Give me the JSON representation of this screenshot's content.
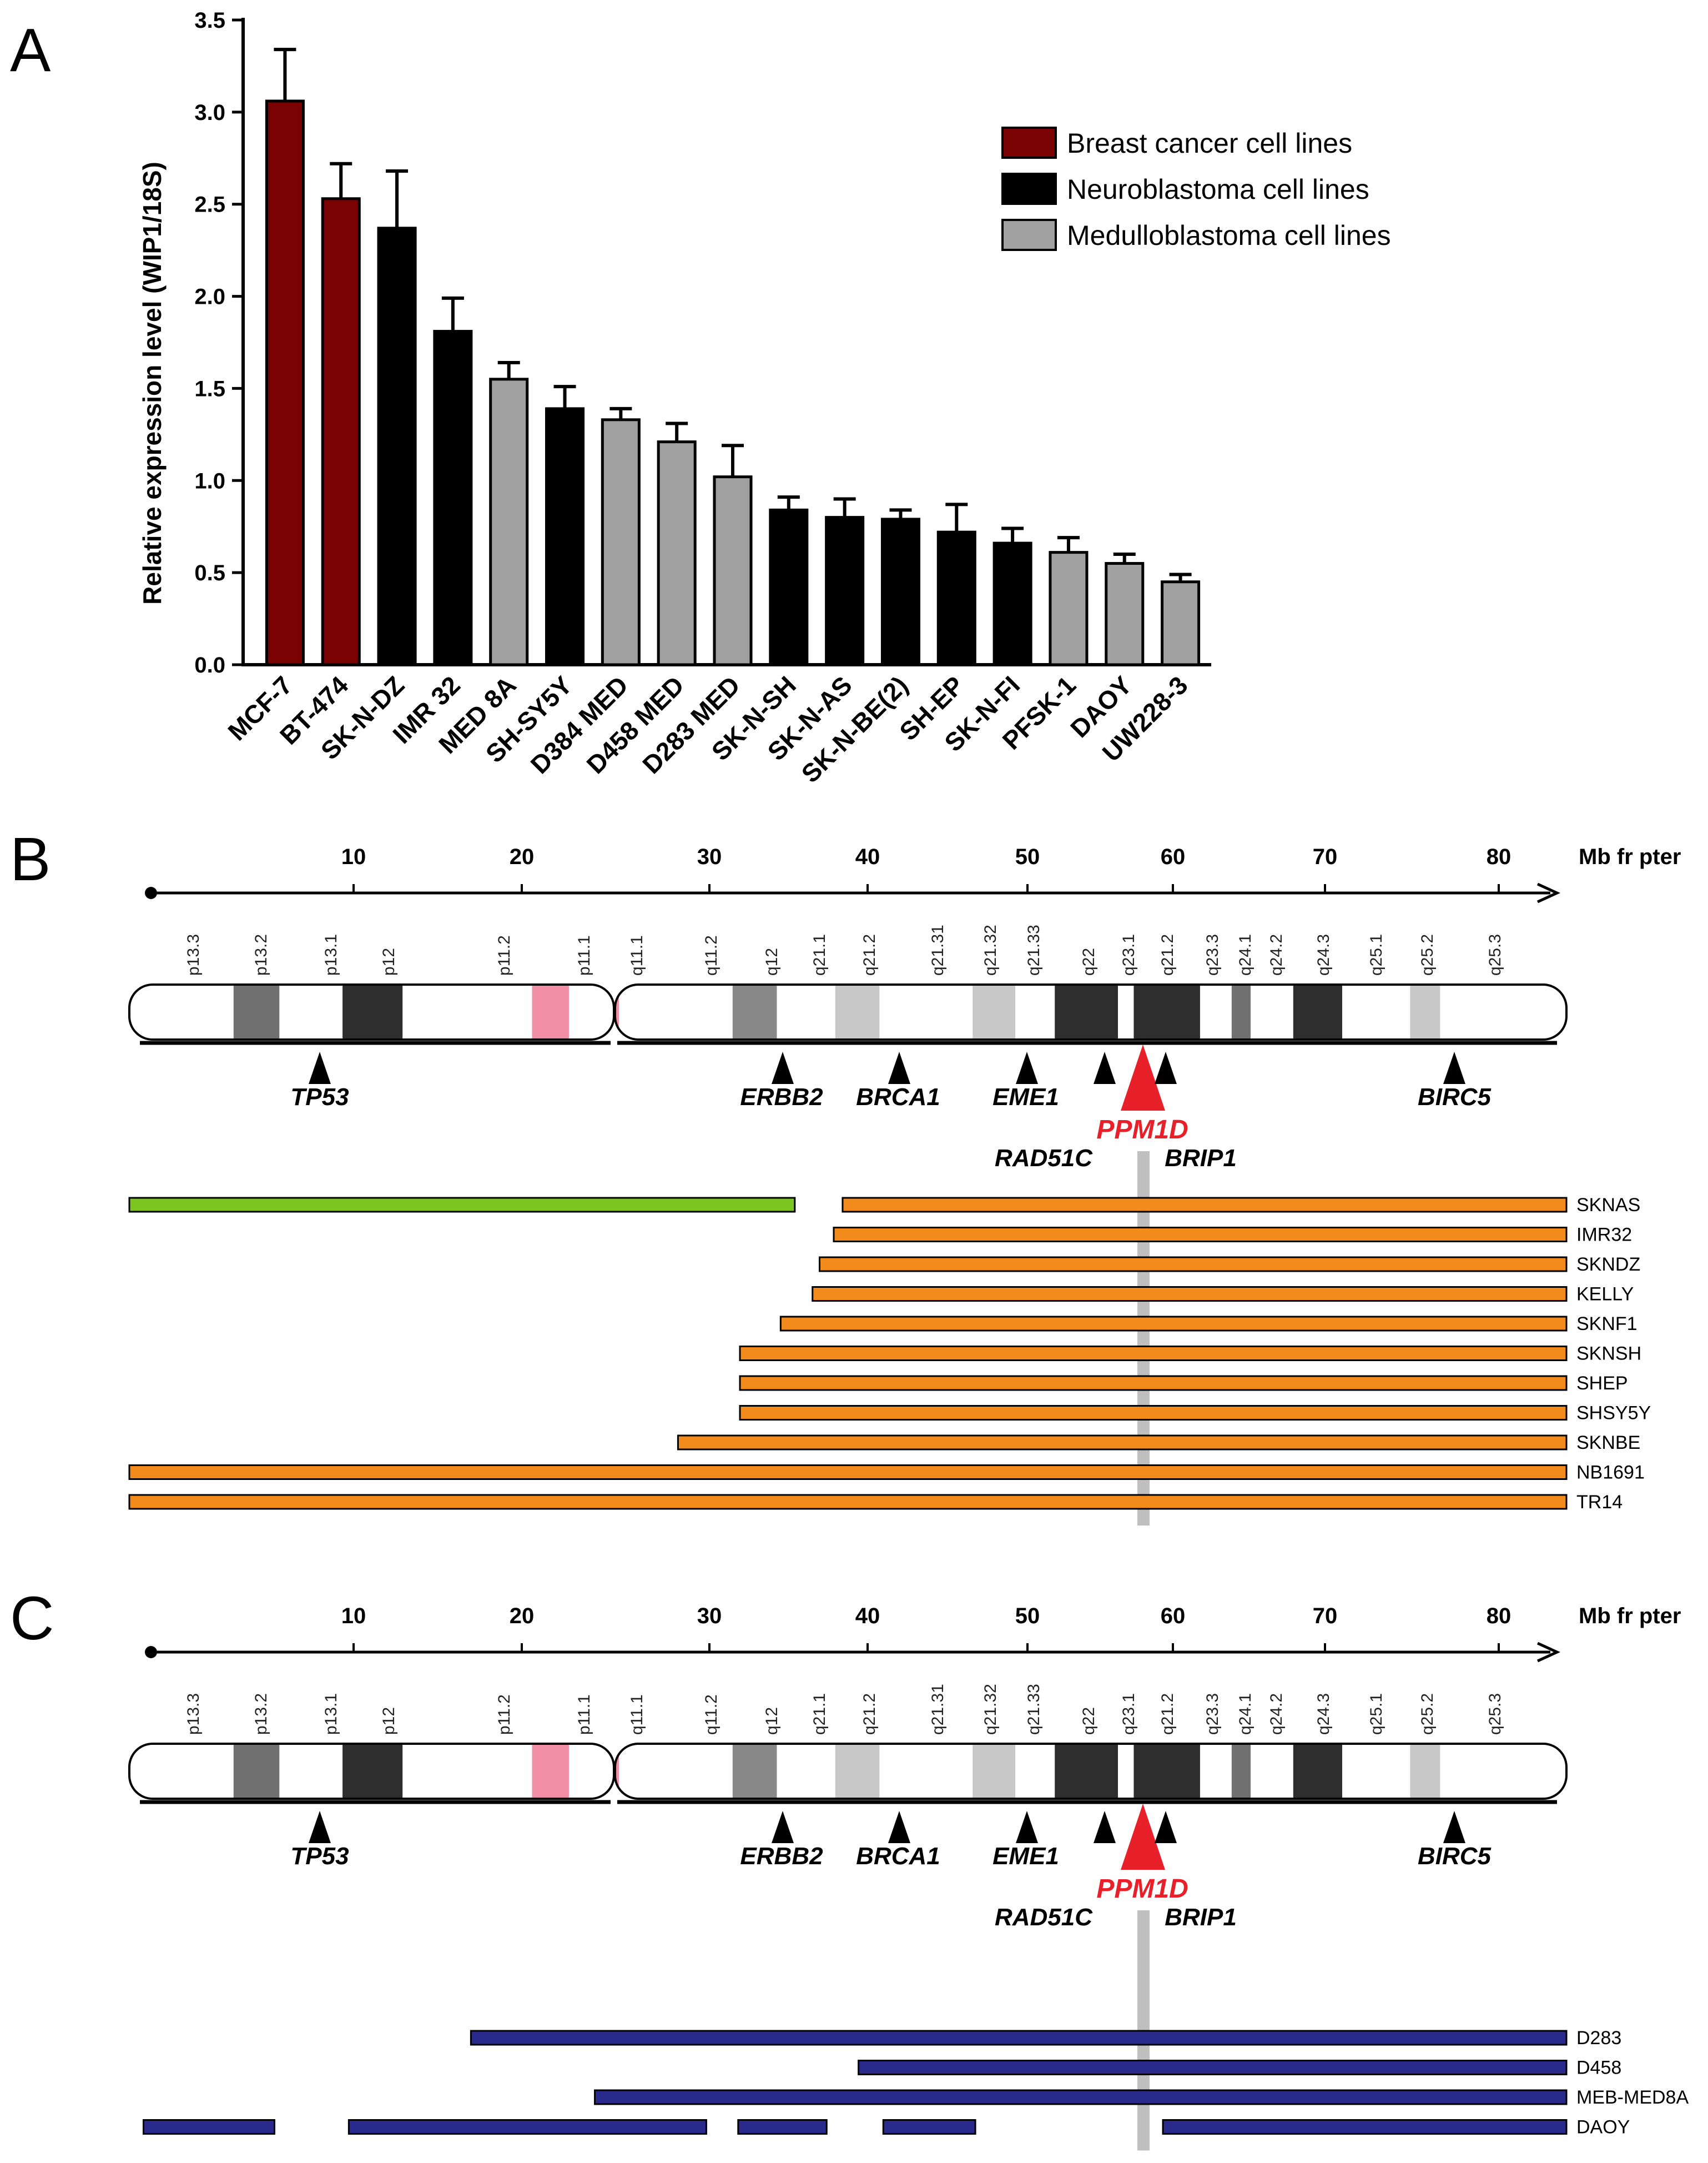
{
  "colors": {
    "breast": "#7b0202",
    "neuro": "#000000",
    "medullo": "#a0a0a0",
    "green": "#7cc521",
    "orange": "#f28b1c",
    "navy": "#2a2a8c",
    "pink": "#f28fa6",
    "highlight": "#e8202a",
    "marker": "#bfbfbf"
  },
  "chart_data": [
    {
      "panel": "A",
      "type": "bar",
      "ylabel": "Relative expression level (WIP1/18S)",
      "ylim": [
        0,
        3.5
      ],
      "yticks": [
        "0.0",
        "0.5",
        "1.0",
        "1.5",
        "2.0",
        "2.5",
        "3.0",
        "3.5"
      ],
      "legend": [
        {
          "group": "breast",
          "label": "Breast cancer cell lines"
        },
        {
          "group": "neuro",
          "label": "Neuroblastoma cell lines"
        },
        {
          "group": "medullo",
          "label": "Medulloblastoma cell lines"
        }
      ],
      "categories": [
        "MCF-7",
        "BT-474",
        "SK-N-DZ",
        "IMR 32",
        "MED 8A",
        "SH-SY5Y",
        "D384 MED",
        "D458 MED",
        "D283 MED",
        "SK-N-SH",
        "SK-N-AS",
        "SK-N-BE(2)",
        "SH-EP",
        "SK-N-FI",
        "PFSK-1",
        "DAOY",
        "UW228-3"
      ],
      "groups": [
        "breast",
        "breast",
        "neuro",
        "neuro",
        "medullo",
        "neuro",
        "medullo",
        "medullo",
        "medullo",
        "neuro",
        "neuro",
        "neuro",
        "neuro",
        "neuro",
        "medullo",
        "medullo",
        "medullo"
      ],
      "values": [
        3.06,
        2.53,
        2.37,
        1.81,
        1.55,
        1.39,
        1.33,
        1.21,
        1.02,
        0.84,
        0.8,
        0.79,
        0.72,
        0.66,
        0.61,
        0.55,
        0.45
      ],
      "errors": [
        0.28,
        0.19,
        0.31,
        0.18,
        0.09,
        0.12,
        0.06,
        0.1,
        0.17,
        0.07,
        0.1,
        0.05,
        0.15,
        0.08,
        0.08,
        0.05,
        0.04
      ]
    },
    {
      "panel": "B",
      "type": "chromosome-map",
      "axis_unit": "Mb fr pter",
      "axis_ticks": [
        10,
        20,
        30,
        40,
        50,
        60,
        70,
        80
      ],
      "bands": [
        "p13.3",
        "p13.2",
        "p13.1",
        "p12",
        "p11.2",
        "p11.1",
        "q11.1",
        "q11.2",
        "q12",
        "q21.1",
        "q21.2",
        "q21.31",
        "q21.32",
        "q21.33",
        "q22",
        "q23.1",
        "q21.2",
        "q23.3",
        "q24.1",
        "q24.2",
        "q24.3",
        "q25.1",
        "q25.2",
        "q25.3"
      ],
      "genes": [
        {
          "name": "TP53",
          "mb": 7.6
        },
        {
          "name": "ERBB2",
          "mb": 35.1
        },
        {
          "name": "BRCA1",
          "mb": 41.8
        },
        {
          "name": "EME1",
          "mb": 50.0
        },
        {
          "name": "RAD51C",
          "mb": 55.5
        },
        {
          "name": "PPM1D",
          "mb": 57.6,
          "highlight": true
        },
        {
          "name": "BRIP1",
          "mb": 59.3
        }
      ],
      "extra_gene": {
        "name": "BIRC5",
        "mb": 78.1
      },
      "segments": [
        {
          "line": "SKNAS",
          "spans": [
            {
              "from": 0,
              "to": 37.6,
              "kind": "loss"
            },
            {
              "from": 40.3,
              "to": 81.2,
              "kind": "gain"
            }
          ]
        },
        {
          "line": "IMR32",
          "spans": [
            {
              "from": 39.8,
              "to": 81.2,
              "kind": "gain"
            }
          ]
        },
        {
          "line": "SKNDZ",
          "spans": [
            {
              "from": 39.0,
              "to": 81.2,
              "kind": "gain"
            }
          ]
        },
        {
          "line": "KELLY",
          "spans": [
            {
              "from": 38.6,
              "to": 81.2,
              "kind": "gain"
            }
          ]
        },
        {
          "line": "SKNF1",
          "spans": [
            {
              "from": 36.8,
              "to": 81.2,
              "kind": "gain"
            }
          ]
        },
        {
          "line": "SKNSH",
          "spans": [
            {
              "from": 34.5,
              "to": 81.2,
              "kind": "gain"
            }
          ]
        },
        {
          "line": "SHEP",
          "spans": [
            {
              "from": 34.5,
              "to": 81.2,
              "kind": "gain"
            }
          ]
        },
        {
          "line": "SHSY5Y",
          "spans": [
            {
              "from": 34.5,
              "to": 81.2,
              "kind": "gain"
            }
          ]
        },
        {
          "line": "SKNBE",
          "spans": [
            {
              "from": 31.0,
              "to": 81.2,
              "kind": "gain"
            }
          ]
        },
        {
          "line": "NB1691",
          "spans": [
            {
              "from": 0,
              "to": 81.2,
              "kind": "gain"
            }
          ]
        },
        {
          "line": "TR14",
          "spans": [
            {
              "from": 0,
              "to": 81.2,
              "kind": "gain"
            }
          ]
        }
      ]
    },
    {
      "panel": "C",
      "type": "chromosome-map",
      "segments": [
        {
          "line": "D283",
          "spans": [
            {
              "from": 19.3,
              "to": 81.2,
              "kind": "gain"
            }
          ]
        },
        {
          "line": "D458",
          "spans": [
            {
              "from": 41.2,
              "to": 81.2,
              "kind": "gain"
            }
          ]
        },
        {
          "line": "MEB-MED8A",
          "spans": [
            {
              "from": 26.3,
              "to": 81.2,
              "kind": "gain"
            }
          ]
        },
        {
          "line": "DAOY",
          "spans": [
            {
              "from": 0.8,
              "to": 8.2,
              "kind": "gain"
            },
            {
              "from": 12.4,
              "to": 32.6,
              "kind": "gain"
            },
            {
              "from": 34.4,
              "to": 39.4,
              "kind": "gain"
            },
            {
              "from": 42.6,
              "to": 47.8,
              "kind": "gain"
            },
            {
              "from": 58.4,
              "to": 81.2,
              "kind": "gain"
            }
          ]
        }
      ]
    }
  ],
  "panel_labels": {
    "a": "A",
    "b": "B",
    "c": "C"
  }
}
